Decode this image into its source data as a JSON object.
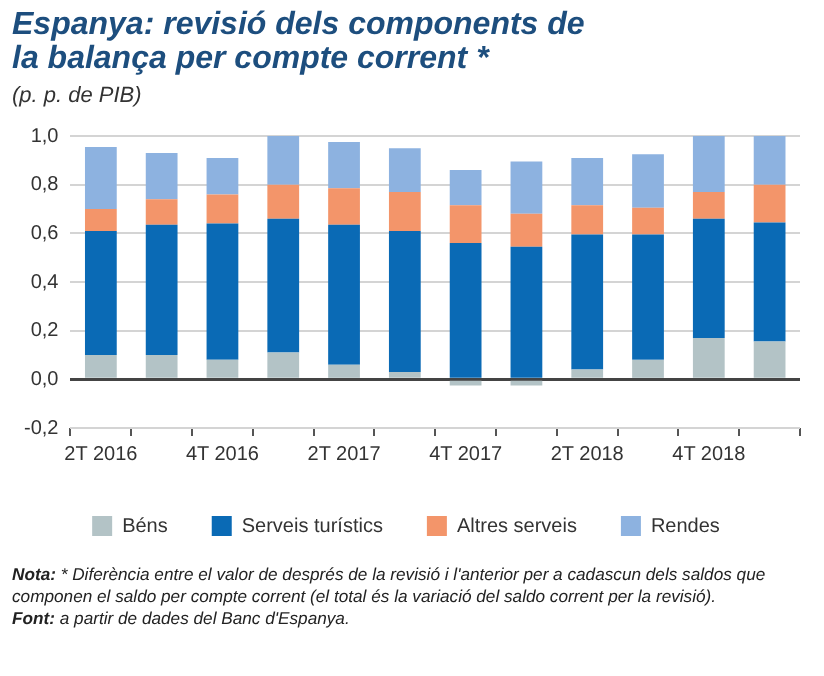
{
  "chart_data": {
    "type": "bar",
    "title": "Espanya: revisió dels components de la balança per compte corrent *",
    "subtitle": "(p. p. de PIB)",
    "categories": [
      "2T 2016",
      null,
      "4T 2016",
      null,
      "2T 2017",
      null,
      "4T 2017",
      null,
      "2T 2018",
      null,
      "4T 2018",
      null
    ],
    "stacked": true,
    "series": [
      {
        "name": "Béns",
        "color": "#b3c3c6",
        "values": [
          0.1,
          0.1,
          0.08,
          0.11,
          0.06,
          0.03,
          -0.025,
          -0.025,
          0.04,
          0.08,
          0.17,
          0.155
        ]
      },
      {
        "name": "Serveis turístics",
        "color": "#0a6ab5",
        "values": [
          0.51,
          0.535,
          0.56,
          0.55,
          0.575,
          0.58,
          0.56,
          0.545,
          0.555,
          0.515,
          0.49,
          0.49
        ]
      },
      {
        "name": "Altres serveis",
        "color": "#f3956a",
        "values": [
          0.09,
          0.105,
          0.12,
          0.14,
          0.15,
          0.16,
          0.155,
          0.135,
          0.12,
          0.11,
          0.11,
          0.155
        ]
      },
      {
        "name": "Rendes",
        "color": "#8db2e0",
        "values": [
          0.255,
          0.19,
          0.15,
          0.2,
          0.19,
          0.18,
          0.145,
          0.215,
          0.195,
          0.22,
          0.23,
          0.2
        ]
      }
    ],
    "ylim": [
      -0.2,
      1.0
    ],
    "yticks": [
      {
        "value": -0.2,
        "label": "-0,2"
      },
      {
        "value": 0,
        "label": "0,0"
      },
      {
        "value": 0.2,
        "label": "0,2"
      },
      {
        "value": 0.4,
        "label": "0,4"
      },
      {
        "value": 0.6,
        "label": "0,6"
      },
      {
        "value": 0.8,
        "label": "0,8"
      },
      {
        "value": 1.0,
        "label": "1,0"
      }
    ],
    "grid": "y",
    "legend": "bottom",
    "annotations": [
      "Nota: * Diferència entre el valor de després de la revisió i l'anterior per a cadascun dels saldos que componen el saldo per compte corrent (el total és la variació del saldo corrent per la revisió).",
      "Font: a partir de dades del Banc d'Espanya."
    ]
  }
}
